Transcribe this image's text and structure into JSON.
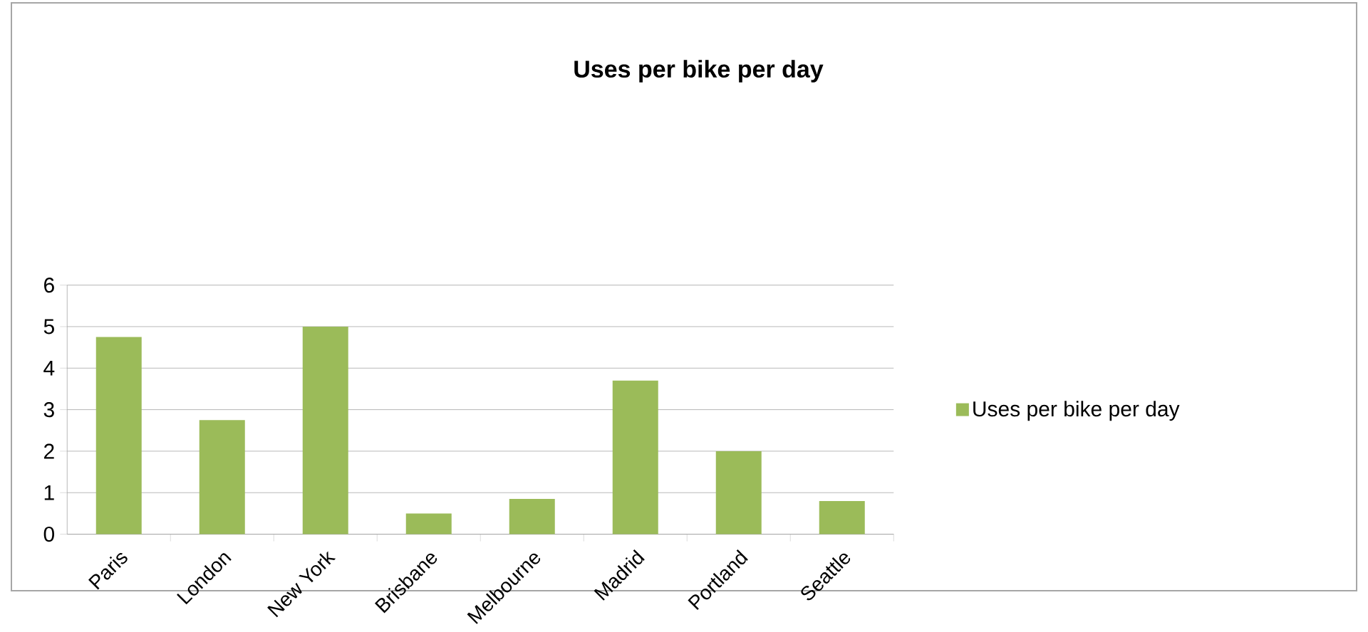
{
  "chart_data": {
    "type": "bar",
    "title": "Uses per bike per day",
    "categories": [
      "Paris",
      "London",
      "New York",
      "Brisbane",
      "Melbourne",
      "Madrid",
      "Portland",
      "Seattle"
    ],
    "series": [
      {
        "name": "Uses per bike per day",
        "color": "#9bbb59",
        "values": [
          4.75,
          2.75,
          5.0,
          0.5,
          0.85,
          3.7,
          2.0,
          0.8
        ]
      }
    ],
    "ylim": [
      0,
      6
    ],
    "yticks": [
      0,
      1,
      2,
      3,
      4,
      5,
      6
    ],
    "grid": "y",
    "legend": "right"
  }
}
